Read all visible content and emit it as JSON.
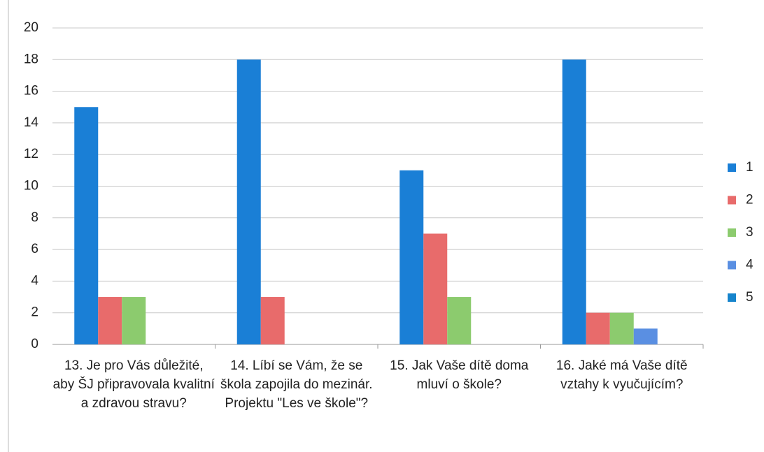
{
  "chart_data": {
    "type": "bar",
    "categories": [
      "13. Je pro Vás důležité, aby ŠJ připravovala kvalitní a zdravou stravu?",
      "14. Líbí se Vám, že se škola zapojila do mezinár. Projektu \"Les ve škole\"?",
      "15. Jak Vaše dítě doma mluví o škole?",
      "16. Jaké má Vaše dítě vztahy k vyučujícím?"
    ],
    "series": [
      {
        "name": "1",
        "color": "#1a7fd6",
        "values": [
          15,
          18,
          11,
          18
        ]
      },
      {
        "name": "2",
        "color": "#e86b6b",
        "values": [
          3,
          3,
          7,
          2
        ]
      },
      {
        "name": "3",
        "color": "#8ccb6e",
        "values": [
          3,
          0,
          3,
          2
        ]
      },
      {
        "name": "4",
        "color": "#5a8fe2",
        "values": [
          0,
          0,
          0,
          1
        ]
      },
      {
        "name": "5",
        "color": "#1684cc",
        "values": [
          0,
          0,
          0,
          0
        ]
      }
    ],
    "ylim": [
      0,
      20
    ],
    "yticks": [
      0,
      2,
      4,
      6,
      8,
      10,
      12,
      14,
      16,
      18,
      20
    ],
    "grid": true,
    "legend": "right"
  }
}
